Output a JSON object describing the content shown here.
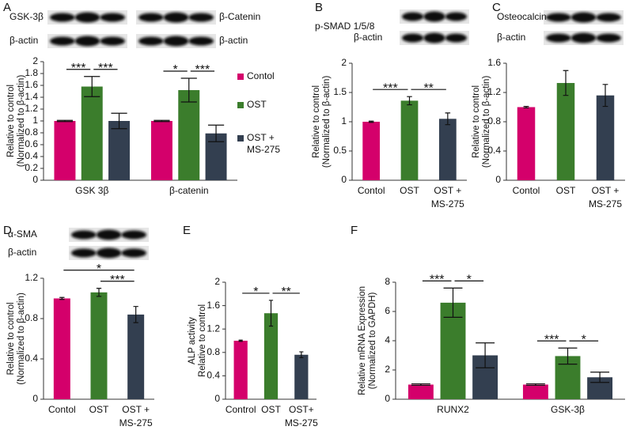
{
  "chart_data": [
    {
      "type": "grouped-bar",
      "panel": "A",
      "blot_labels": [
        "GSK-3β",
        "β-Catenin",
        "β-actin",
        "β-actin"
      ],
      "ylabel": [
        "Relative to control",
        "(Normalized to β-actin)"
      ],
      "categories": [
        "GSK 3β",
        "β-catenin"
      ],
      "series": [
        {
          "name": [
            "Contol"
          ],
          "color": "#d4006b",
          "values": [
            1.0,
            1.0
          ],
          "errors": [
            0.01,
            0.01
          ]
        },
        {
          "name": [
            "OST"
          ],
          "color": "#3b7d2c",
          "values": [
            1.58,
            1.52
          ],
          "errors": [
            0.17,
            0.2
          ]
        },
        {
          "name": [
            "OST +",
            "MS-275"
          ],
          "color": "#333f50",
          "values": [
            1.0,
            0.79
          ],
          "errors": [
            0.13,
            0.14
          ]
        }
      ],
      "ylim": [
        0,
        2
      ],
      "yticks": [
        0,
        0.2,
        0.4,
        0.6,
        0.8,
        1,
        1.2,
        1.4,
        1.6,
        1.8,
        2
      ],
      "significance": [
        {
          "group": 0,
          "from": 0,
          "to": 1,
          "label": "***"
        },
        {
          "group": 0,
          "from": 1,
          "to": 2,
          "label": "***"
        },
        {
          "group": 1,
          "from": 0,
          "to": 1,
          "label": "*"
        },
        {
          "group": 1,
          "from": 1,
          "to": 2,
          "label": "***"
        }
      ]
    },
    {
      "type": "bar",
      "panel": "B",
      "blot_labels": [
        "p-SMAD 1/5/8",
        "β-actin"
      ],
      "ylabel": [
        "Relative to control",
        "(Normalized to β-actin)"
      ],
      "categories": [
        [
          "Contol"
        ],
        [
          "OST"
        ],
        [
          "OST +",
          "MS-275"
        ]
      ],
      "values": [
        1.0,
        1.36,
        1.05
      ],
      "errors": [
        0.01,
        0.07,
        0.1
      ],
      "colors": [
        "#d4006b",
        "#3b7d2c",
        "#333f50"
      ],
      "ylim": [
        0,
        2
      ],
      "yticks": [
        0,
        0.5,
        1,
        1.5,
        2
      ],
      "significance": [
        {
          "from": 0,
          "to": 1,
          "label": "***"
        },
        {
          "from": 1,
          "to": 2,
          "label": "**"
        }
      ]
    },
    {
      "type": "bar",
      "panel": "C",
      "blot_labels": [
        "Osteocalcin",
        "β-actin"
      ],
      "ylabel": [
        "Relative to control",
        "(Normalized to β-actin)"
      ],
      "categories": [
        [
          "Contol"
        ],
        [
          "OST"
        ],
        [
          "OST +",
          "MS-275"
        ]
      ],
      "values": [
        1.0,
        1.33,
        1.16
      ],
      "errors": [
        0.01,
        0.17,
        0.15
      ],
      "colors": [
        "#d4006b",
        "#3b7d2c",
        "#333f50"
      ],
      "ylim": [
        0,
        1.6
      ],
      "yticks": [
        0,
        0.4,
        0.8,
        1.2,
        1.6
      ],
      "significance": []
    },
    {
      "type": "bar",
      "panel": "D",
      "blot_labels": [
        "α-SMA",
        "β-actin"
      ],
      "ylabel": [
        "Relative to control",
        "(Normalized to β-actin)"
      ],
      "categories": [
        [
          "Contol"
        ],
        [
          "OST"
        ],
        [
          "OST +",
          "MS-275"
        ]
      ],
      "values": [
        1.0,
        1.06,
        0.84
      ],
      "errors": [
        0.01,
        0.04,
        0.08
      ],
      "colors": [
        "#d4006b",
        "#3b7d2c",
        "#333f50"
      ],
      "ylim": [
        0,
        1.2
      ],
      "yticks": [
        0,
        0.4,
        0.8,
        1.2
      ],
      "significance": [
        {
          "from": 1,
          "to": 2,
          "label": "***"
        },
        {
          "from": 0,
          "to": 2,
          "label": "*"
        }
      ]
    },
    {
      "type": "bar",
      "panel": "E",
      "blot_labels": [],
      "ylabel": [
        "ALP activity",
        "Relative to control"
      ],
      "categories": [
        [
          "Control"
        ],
        [
          "OST"
        ],
        [
          "OST+",
          "MS-275"
        ]
      ],
      "values": [
        1.0,
        1.47,
        0.76
      ],
      "errors": [
        0.01,
        0.22,
        0.05
      ],
      "colors": [
        "#d4006b",
        "#3b7d2c",
        "#333f50"
      ],
      "ylim": [
        0,
        2
      ],
      "yticks": [
        0,
        0.4,
        0.8,
        1.2,
        1.6,
        2
      ],
      "significance": [
        {
          "from": 0,
          "to": 1,
          "label": "*"
        },
        {
          "from": 1,
          "to": 2,
          "label": "**"
        }
      ]
    },
    {
      "type": "grouped-bar",
      "panel": "F",
      "blot_labels": [],
      "ylabel": [
        "Relative mRNA Expression",
        "(Normalized to GAPDH)"
      ],
      "categories": [
        "RUNX2",
        "GSK-3β"
      ],
      "series": [
        {
          "color": "#d4006b",
          "values": [
            1.0,
            1.0
          ],
          "errors": [
            0.05,
            0.05
          ]
        },
        {
          "color": "#3b7d2c",
          "values": [
            6.6,
            2.95
          ],
          "errors": [
            1.0,
            0.55
          ]
        },
        {
          "color": "#333f50",
          "values": [
            3.0,
            1.5
          ],
          "errors": [
            0.85,
            0.35
          ]
        }
      ],
      "ylim": [
        0,
        8
      ],
      "yticks": [
        0,
        2,
        4,
        6,
        8
      ],
      "significance": [
        {
          "group": 0,
          "from": 0,
          "to": 1,
          "label": "***"
        },
        {
          "group": 0,
          "from": 1,
          "to": 2,
          "label": "*"
        },
        {
          "group": 1,
          "from": 0,
          "to": 1,
          "label": "***"
        },
        {
          "group": 1,
          "from": 1,
          "to": 2,
          "label": "*"
        }
      ]
    }
  ]
}
